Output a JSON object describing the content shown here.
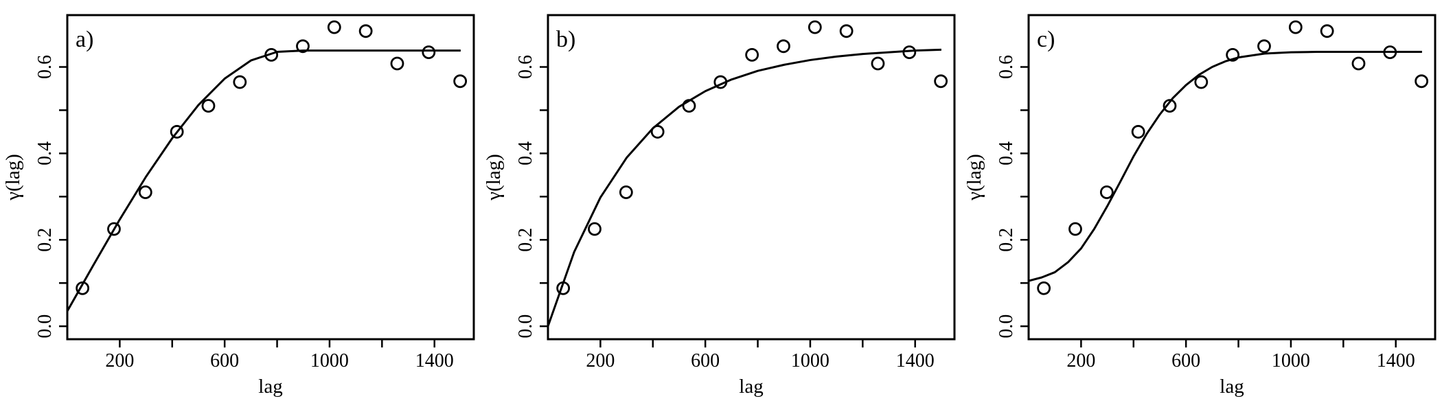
{
  "chart_data": [
    {
      "type": "scatter",
      "panel_label": "a)",
      "xlabel": "lag",
      "ylabel": "γ(lag)",
      "xlim": [
        0,
        1550
      ],
      "ylim": [
        -0.03,
        0.72
      ],
      "x_ticks": [
        200,
        600,
        1000,
        1400
      ],
      "y_ticks": [
        0.0,
        0.2,
        0.4,
        0.6
      ],
      "x_tick_labels": [
        "200",
        "600",
        "1000",
        "1400"
      ],
      "y_tick_labels": [
        "0.0",
        "0.2",
        "0.4",
        "0.6"
      ],
      "points": {
        "x": [
          58,
          178,
          298,
          418,
          538,
          658,
          778,
          898,
          1018,
          1138,
          1258,
          1378,
          1498
        ],
        "y": [
          0.088,
          0.225,
          0.31,
          0.45,
          0.51,
          0.565,
          0.628,
          0.648,
          0.692,
          0.683,
          0.608,
          0.634,
          0.567
        ]
      },
      "fitted_curve": {
        "x": [
          0,
          100,
          200,
          300,
          400,
          500,
          600,
          700,
          800,
          900,
          1000,
          1100,
          1200,
          1300,
          1400,
          1500
        ],
        "y": [
          0.035,
          0.142,
          0.247,
          0.346,
          0.435,
          0.512,
          0.573,
          0.615,
          0.635,
          0.638,
          0.638,
          0.638,
          0.638,
          0.638,
          0.638,
          0.638
        ]
      }
    },
    {
      "type": "scatter",
      "panel_label": "b)",
      "xlabel": "lag",
      "ylabel": "γ(lag)",
      "xlim": [
        0,
        1550
      ],
      "ylim": [
        -0.03,
        0.72
      ],
      "x_ticks": [
        200,
        600,
        1000,
        1400
      ],
      "y_ticks": [
        0.0,
        0.2,
        0.4,
        0.6
      ],
      "x_tick_labels": [
        "200",
        "600",
        "1000",
        "1400"
      ],
      "y_tick_labels": [
        "0.0",
        "0.2",
        "0.4",
        "0.6"
      ],
      "points": {
        "x": [
          58,
          178,
          298,
          418,
          538,
          658,
          778,
          898,
          1018,
          1138,
          1258,
          1378,
          1498
        ],
        "y": [
          0.088,
          0.225,
          0.31,
          0.45,
          0.51,
          0.565,
          0.628,
          0.648,
          0.692,
          0.683,
          0.608,
          0.634,
          0.567
        ]
      },
      "fitted_curve": {
        "x": [
          0,
          100,
          200,
          300,
          400,
          500,
          600,
          700,
          800,
          900,
          1000,
          1100,
          1200,
          1300,
          1400,
          1500
        ],
        "y": [
          0.0,
          0.172,
          0.298,
          0.39,
          0.458,
          0.508,
          0.544,
          0.571,
          0.591,
          0.605,
          0.616,
          0.624,
          0.63,
          0.634,
          0.638,
          0.64
        ]
      }
    },
    {
      "type": "scatter",
      "panel_label": "c)",
      "xlabel": "lag",
      "ylabel": "γ(lag)",
      "xlim": [
        0,
        1550
      ],
      "ylim": [
        -0.03,
        0.72
      ],
      "x_ticks": [
        200,
        600,
        1000,
        1400
      ],
      "y_ticks": [
        0.0,
        0.2,
        0.4,
        0.6
      ],
      "x_tick_labels": [
        "200",
        "600",
        "1000",
        "1400"
      ],
      "y_tick_labels": [
        "0.0",
        "0.2",
        "0.4",
        "0.6"
      ],
      "points": {
        "x": [
          58,
          178,
          298,
          418,
          538,
          658,
          778,
          898,
          1018,
          1138,
          1258,
          1378,
          1498
        ],
        "y": [
          0.088,
          0.225,
          0.31,
          0.45,
          0.51,
          0.565,
          0.628,
          0.648,
          0.692,
          0.683,
          0.608,
          0.634,
          0.567
        ]
      },
      "fitted_curve": {
        "x": [
          0,
          50,
          100,
          150,
          200,
          250,
          300,
          350,
          400,
          450,
          500,
          550,
          600,
          650,
          700,
          750,
          800,
          900,
          1000,
          1100,
          1200,
          1300,
          1400,
          1500
        ],
        "y": [
          0.105,
          0.113,
          0.125,
          0.148,
          0.18,
          0.225,
          0.278,
          0.335,
          0.393,
          0.445,
          0.49,
          0.528,
          0.558,
          0.582,
          0.6,
          0.613,
          0.622,
          0.631,
          0.634,
          0.635,
          0.635,
          0.635,
          0.635,
          0.635
        ]
      }
    }
  ]
}
